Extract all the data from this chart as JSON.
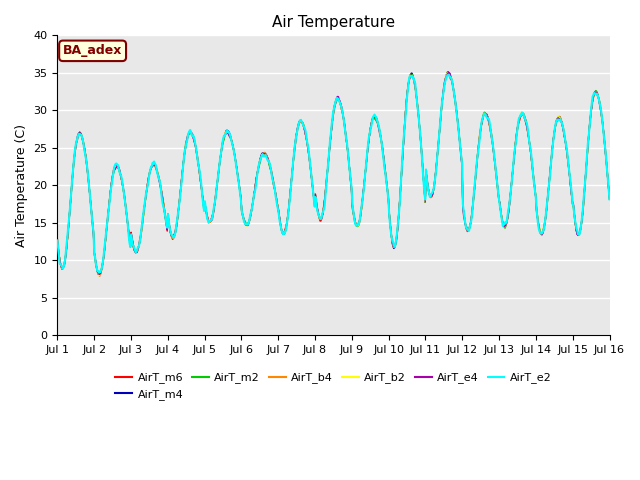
{
  "title": "Air Temperature",
  "ylabel": "Air Temperature (C)",
  "ylim": [
    0,
    40
  ],
  "yticks": [
    0,
    5,
    10,
    15,
    20,
    25,
    30,
    35,
    40
  ],
  "xtick_labels": [
    "Jul 1",
    "Jul 2",
    "Jul 3",
    "Jul 4",
    "Jul 5",
    "Jul 6",
    "Jul 7",
    "Jul 8",
    "Jul 9",
    "Jul 10",
    "Jul 11",
    "Jul 12",
    "Jul 13",
    "Jul 14",
    "Jul 15",
    "Jul 16"
  ],
  "series": [
    {
      "name": "AirT_m6",
      "color": "#ff0000"
    },
    {
      "name": "AirT_m4",
      "color": "#0000bb"
    },
    {
      "name": "AirT_m2",
      "color": "#00cc00"
    },
    {
      "name": "AirT_b4",
      "color": "#ff8800"
    },
    {
      "name": "AirT_b2",
      "color": "#ffff00"
    },
    {
      "name": "AirT_e4",
      "color": "#aa00aa"
    },
    {
      "name": "AirT_e2",
      "color": "#00ffff"
    }
  ],
  "annotation_text": "BA_adex",
  "annotation_color": "#800000",
  "annotation_bg": "#ffffdd",
  "plot_bg": "#e8e8e8",
  "fig_bg": "#ffffff",
  "title_fontsize": 11,
  "label_fontsize": 9,
  "tick_fontsize": 8,
  "legend_fontsize": 8
}
